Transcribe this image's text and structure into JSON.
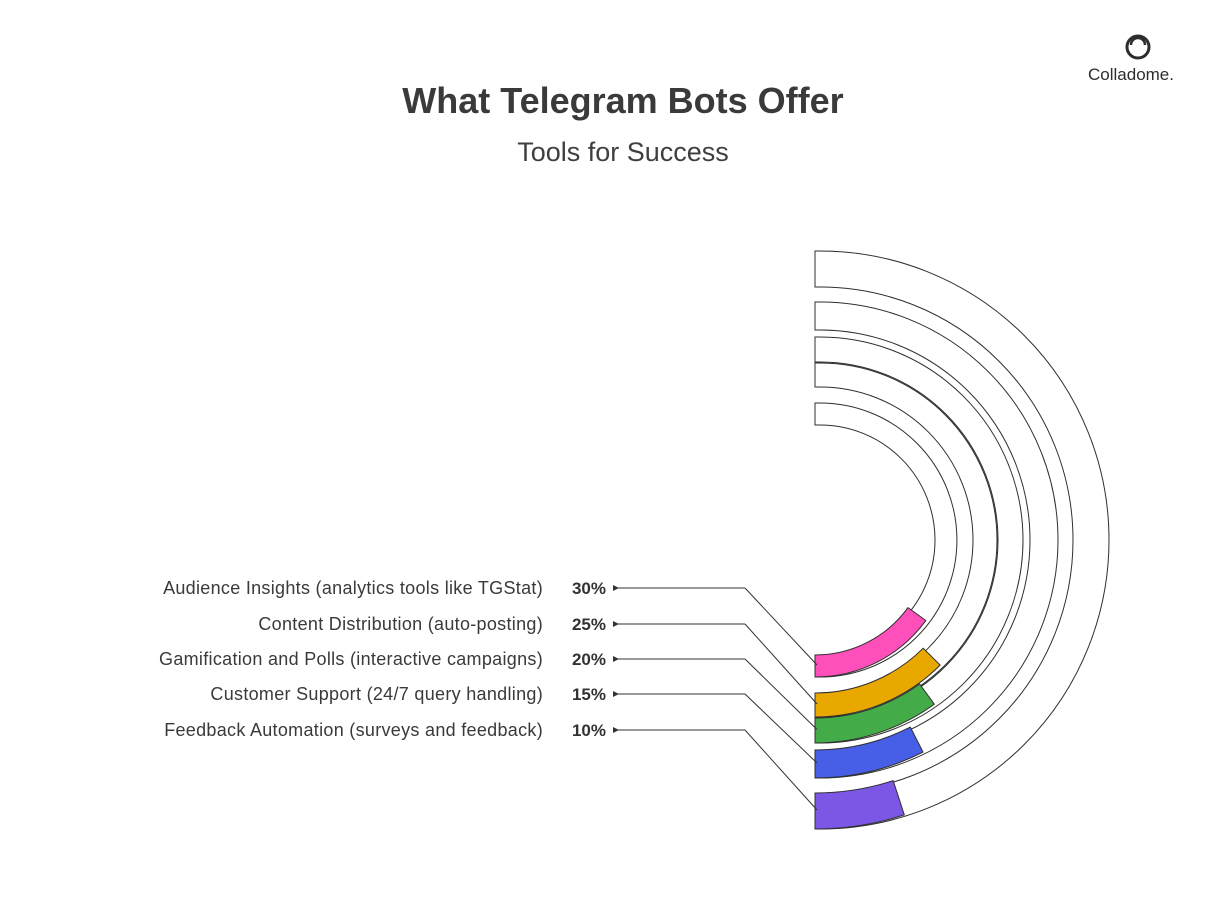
{
  "brand": {
    "name": "Colladome.",
    "logo_icon": "colladome-logo-icon"
  },
  "chart_data": {
    "type": "radial-bar",
    "title": "What Telegram Bots Offer",
    "subtitle": "Tools for Success",
    "max": 100,
    "categories": [
      {
        "label": "Audience Insights (analytics tools like TGStat)",
        "value": 30,
        "value_label": "30%",
        "color": "#ff4fba"
      },
      {
        "label": "Content Distribution (auto-posting)",
        "value": 25,
        "value_label": "25%",
        "color": "#e8a800"
      },
      {
        "label": "Gamification and Polls (interactive campaigns)",
        "value": 20,
        "value_label": "20%",
        "color": "#43ac48"
      },
      {
        "label": "Customer Support (24/7 query handling)",
        "value": 15,
        "value_label": "15%",
        "color": "#465fe6"
      },
      {
        "label": "Feedback Automation (surveys and feedback)",
        "value": 10,
        "value_label": "10%",
        "color": "#7c57e6"
      }
    ]
  }
}
